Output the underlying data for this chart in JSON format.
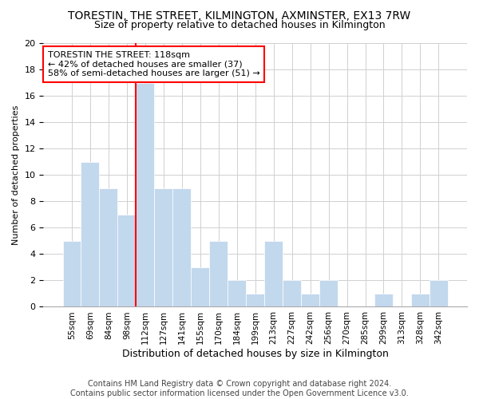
{
  "title": "TORESTIN, THE STREET, KILMINGTON, AXMINSTER, EX13 7RW",
  "subtitle": "Size of property relative to detached houses in Kilmington",
  "xlabel": "Distribution of detached houses by size in Kilmington",
  "ylabel": "Number of detached properties",
  "categories": [
    "55sqm",
    "69sqm",
    "84sqm",
    "98sqm",
    "112sqm",
    "127sqm",
    "141sqm",
    "155sqm",
    "170sqm",
    "184sqm",
    "199sqm",
    "213sqm",
    "227sqm",
    "242sqm",
    "256sqm",
    "270sqm",
    "285sqm",
    "299sqm",
    "313sqm",
    "328sqm",
    "342sqm"
  ],
  "values": [
    5,
    11,
    9,
    7,
    17,
    9,
    9,
    3,
    5,
    2,
    1,
    5,
    2,
    1,
    2,
    0,
    0,
    1,
    0,
    1,
    2
  ],
  "bar_color": "#c2d8ed",
  "bar_edge_color": "#c2d8ed",
  "vline_index": 4,
  "vline_color": "red",
  "ylim": [
    0,
    20
  ],
  "yticks": [
    0,
    2,
    4,
    6,
    8,
    10,
    12,
    14,
    16,
    18,
    20
  ],
  "annotation_line1": "TORESTIN THE STREET: 118sqm",
  "annotation_line2": "← 42% of detached houses are smaller (37)",
  "annotation_line3": "58% of semi-detached houses are larger (51) →",
  "annotation_box_facecolor": "white",
  "annotation_box_edgecolor": "red",
  "footer_line1": "Contains HM Land Registry data © Crown copyright and database right 2024.",
  "footer_line2": "Contains public sector information licensed under the Open Government Licence v3.0.",
  "title_fontsize": 10,
  "subtitle_fontsize": 9,
  "annotation_fontsize": 8.0,
  "footer_fontsize": 7.0,
  "ylabel_fontsize": 8,
  "xlabel_fontsize": 9,
  "tick_fontsize": 8,
  "xtick_fontsize": 7.5
}
